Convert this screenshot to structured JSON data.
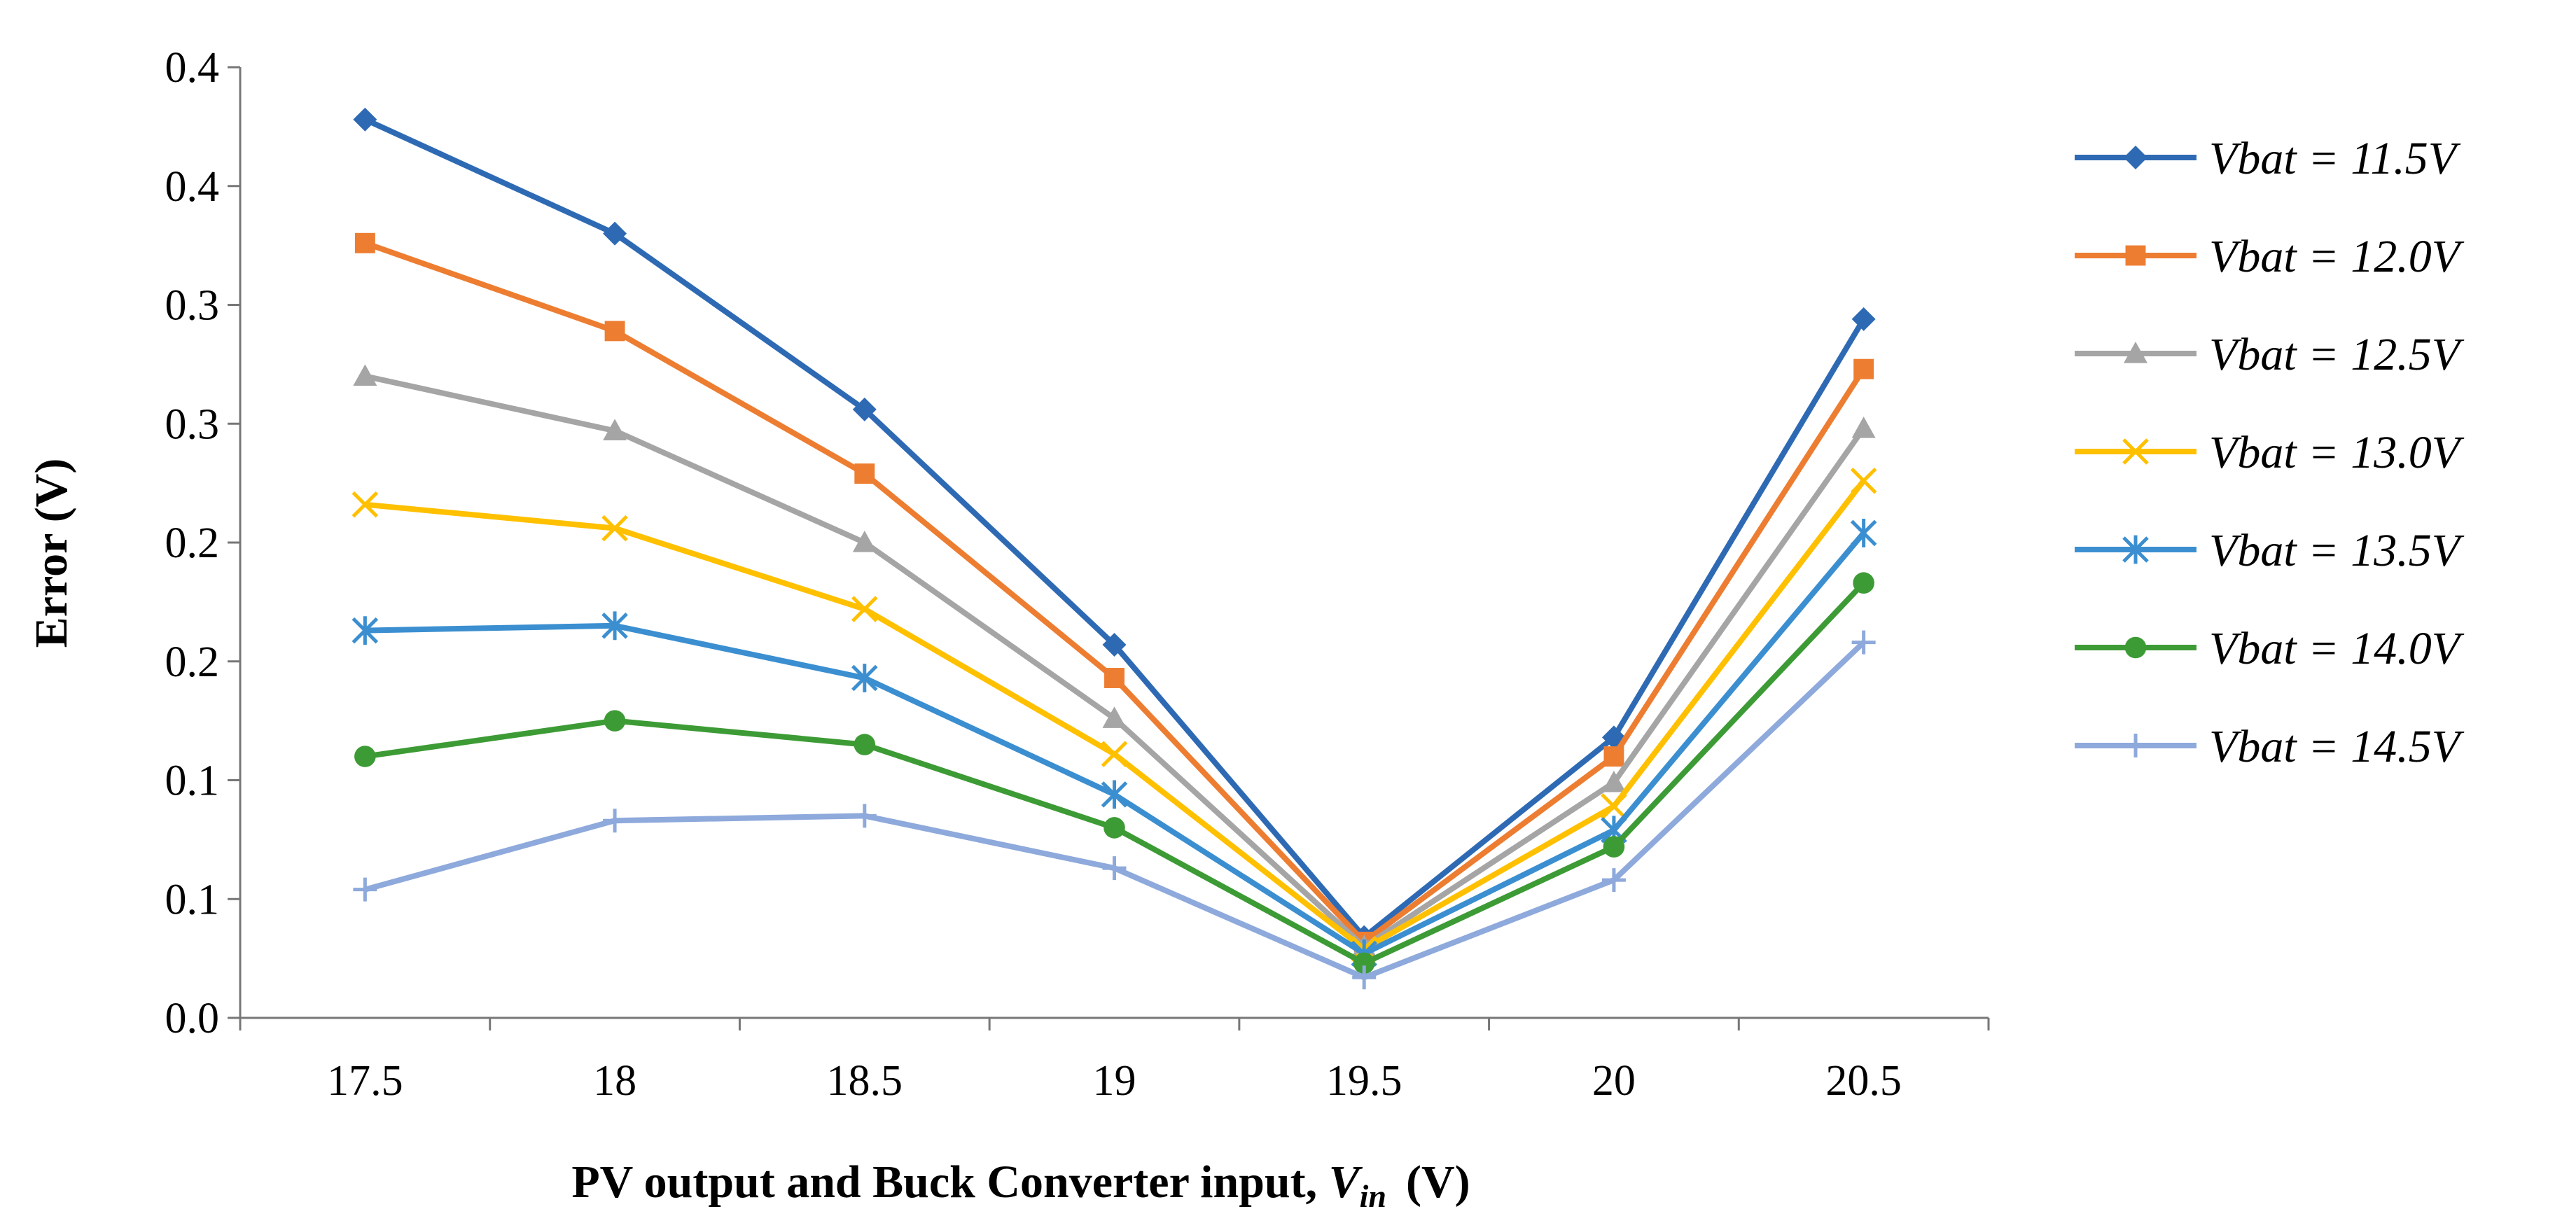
{
  "chart_data": {
    "type": "line",
    "title": "",
    "xlabel": "PV output and Buck Converter input, ",
    "xlabel_var": "V",
    "xlabel_sub": "in",
    "xlabel_unit": "(V)",
    "ylabel": "Error (V)",
    "categories": [
      "17.5",
      "18",
      "18.5",
      "19",
      "19.5",
      "20",
      "20.5"
    ],
    "y_tick_labels": [
      "0.0",
      "0.1",
      "0.1",
      "0.2",
      "0.2",
      "0.3",
      "0.3",
      "0.4",
      "0.4"
    ],
    "ylim": [
      0,
      0.4
    ],
    "legend_position": "right",
    "series": [
      {
        "name": "Vbat = 11.5V",
        "color": "#2E6AB4",
        "marker": "diamond",
        "values": [
          0.378,
          0.33,
          0.256,
          0.157,
          0.034,
          0.118,
          0.294
        ]
      },
      {
        "name": "Vbat = 12.0V",
        "color": "#ED7D31",
        "marker": "square",
        "values": [
          0.326,
          0.289,
          0.229,
          0.143,
          0.032,
          0.11,
          0.273
        ]
      },
      {
        "name": "Vbat = 12.5V",
        "color": "#A5A5A5",
        "marker": "triangle",
        "values": [
          0.27,
          0.247,
          0.2,
          0.126,
          0.03,
          0.099,
          0.248
        ]
      },
      {
        "name": "Vbat = 13.0V",
        "color": "#FFC000",
        "marker": "x",
        "values": [
          0.216,
          0.206,
          0.172,
          0.111,
          0.029,
          0.089,
          0.226
        ]
      },
      {
        "name": "Vbat = 13.5V",
        "color": "#3B8FD0",
        "marker": "asterisk",
        "values": [
          0.163,
          0.165,
          0.143,
          0.094,
          0.027,
          0.079,
          0.204
        ]
      },
      {
        "name": "Vbat = 14.0V",
        "color": "#3D9B35",
        "marker": "circle",
        "values": [
          0.11,
          0.125,
          0.115,
          0.08,
          0.023,
          0.072,
          0.183
        ]
      },
      {
        "name": "Vbat = 14.5V",
        "color": "#8EA9DB",
        "marker": "plus",
        "values": [
          0.054,
          0.083,
          0.085,
          0.063,
          0.017,
          0.058,
          0.158
        ]
      }
    ]
  }
}
